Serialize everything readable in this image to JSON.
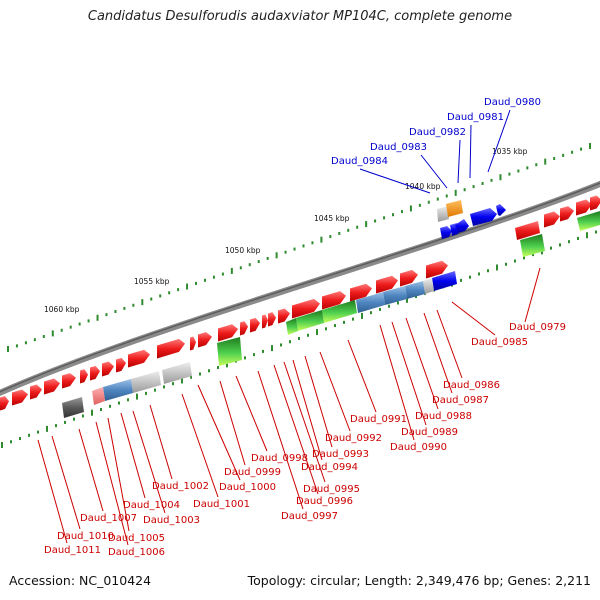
{
  "title": "Candidatus Desulforudis audaxviator MP104C, complete genome",
  "footer": {
    "accession": "Accession: NC_010424",
    "topology": "Topology: circular; Length: 2,349,476 bp; Genes: 2,211"
  },
  "ticks": [
    "1035 kbp",
    "1040 kbp",
    "1045 kbp",
    "1050 kbp",
    "1055 kbp",
    "1060 kbp"
  ],
  "gene_labels_blue": [
    "Daud_0980",
    "Daud_0981",
    "Daud_0982",
    "Daud_0983",
    "Daud_0984"
  ],
  "gene_labels_red": [
    "Daud_0979",
    "Daud_0985",
    "Daud_0986",
    "Daud_0987",
    "Daud_0988",
    "Daud_0989",
    "Daud_0990",
    "Daud_0991",
    "Daud_0992",
    "Daud_0993",
    "Daud_0994",
    "Daud_0995",
    "Daud_0996",
    "Daud_0997",
    "Daud_0998",
    "Daud_0999",
    "Daud_1000",
    "Daud_1001",
    "Daud_1002",
    "Daud_1003",
    "Daud_1004",
    "Daud_1005",
    "Daud_1006",
    "Daud_1007",
    "Daud_1010",
    "Daud_1011"
  ],
  "colors": {
    "backbone": "#7a7a7a",
    "cds_red": "#ee1c1c",
    "label_red": "#cc0000",
    "label_blue": "#0000cc",
    "tick_green": "#2e8b2e"
  }
}
